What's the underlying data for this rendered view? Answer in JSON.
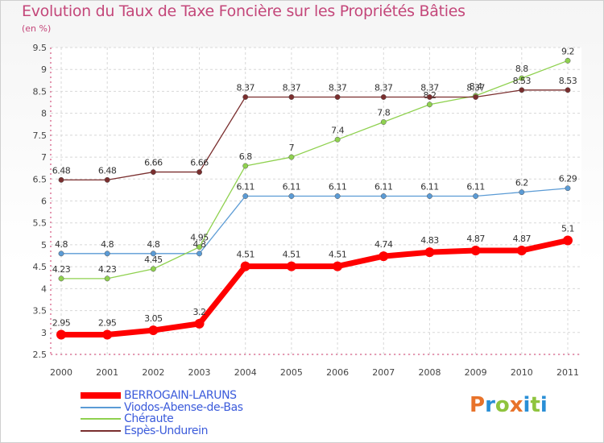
{
  "title": "Evolution du Taux de Taxe Foncière sur les Propriétés Bâties",
  "subtitle": "(en %)",
  "brand": {
    "text": "Proxiti",
    "colors": [
      "#e8732a",
      "#2a8fd6",
      "#8fc43e",
      "#e8732a",
      "#2a8fd6",
      "#8fc43e",
      "#2a8fd6"
    ]
  },
  "chart_data": {
    "type": "line",
    "title": "Evolution du Taux de Taxe Foncière sur les Propriétés Bâties",
    "ylabel": "(en %)",
    "xlabel": "",
    "ylim": [
      2.5,
      9.5
    ],
    "yticks": [
      "2.5",
      "3",
      "3.5",
      "4",
      "4.5",
      "5",
      "5.5",
      "6",
      "6.5",
      "7",
      "7.5",
      "8",
      "8.5",
      "9",
      "9.5"
    ],
    "categories": [
      "2000",
      "2001",
      "2002",
      "2003",
      "2004",
      "2005",
      "2006",
      "2007",
      "2008",
      "2009",
      "2010",
      "2011"
    ],
    "grid": true,
    "series": [
      {
        "name": "BERROGAIN-LARUNS",
        "color": "#ff0000",
        "emphasis": true,
        "values": [
          2.95,
          2.95,
          3.05,
          3.2,
          4.51,
          4.51,
          4.51,
          4.74,
          4.83,
          4.87,
          4.87,
          5.1
        ],
        "labels": [
          "2.95",
          "2.95",
          "3.05",
          "3.2",
          "4.51",
          "4.51",
          "4.51",
          "4.74",
          "4.83",
          "4.87",
          "4.87",
          "5.1"
        ]
      },
      {
        "name": "Viodos-Abense-de-Bas",
        "color": "#5b9bd5",
        "emphasis": false,
        "values": [
          4.8,
          4.8,
          4.8,
          4.8,
          6.11,
          6.11,
          6.11,
          6.11,
          6.11,
          6.11,
          6.2,
          6.29
        ],
        "labels": [
          "4.8",
          "4.8",
          "4.8",
          "4.8",
          "6.11",
          "6.11",
          "6.11",
          "6.11",
          "6.11",
          "6.11",
          "6.2",
          "6.29"
        ]
      },
      {
        "name": "Chéraute",
        "color": "#8fd14f",
        "emphasis": false,
        "values": [
          4.23,
          4.23,
          4.45,
          4.95,
          6.8,
          7,
          7.4,
          7.8,
          8.2,
          8.4,
          8.8,
          9.2
        ],
        "labels": [
          "4.23",
          "4.23",
          "4.45",
          "4.95",
          "6.8",
          "7",
          "7.4",
          "7.8",
          "8.2",
          "8.4",
          "8.8",
          "9.2"
        ]
      },
      {
        "name": "Espès-Undurein",
        "color": "#7a2e2e",
        "emphasis": false,
        "values": [
          6.48,
          6.48,
          6.66,
          6.66,
          8.37,
          8.37,
          8.37,
          8.37,
          8.37,
          8.37,
          8.53,
          8.53
        ],
        "labels": [
          "6.48",
          "6.48",
          "6.66",
          "6.66",
          "8.37",
          "8.37",
          "8.37",
          "8.37",
          "8.37",
          "8.37",
          "8.53",
          "8.53"
        ]
      }
    ],
    "legend_position": "bottom-left"
  }
}
